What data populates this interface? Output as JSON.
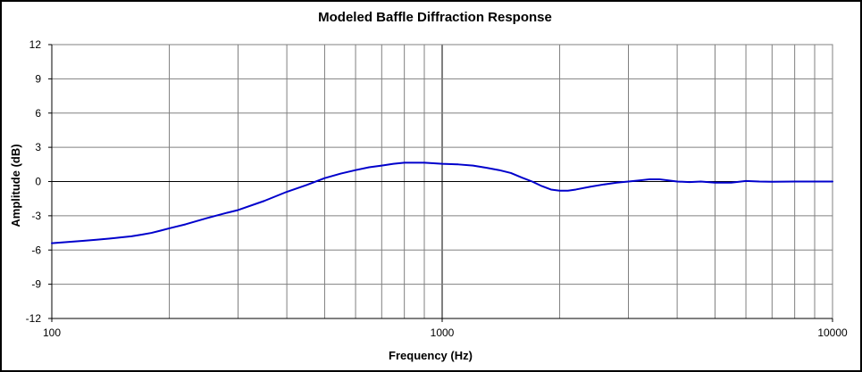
{
  "chart_data": {
    "type": "line",
    "title": "Modeled Baffle Diffraction Response",
    "xlabel": "Frequency (Hz)",
    "ylabel": "Amplitude (dB)",
    "x_scale": "log",
    "xlim": [
      100,
      10000
    ],
    "ylim": [
      -12,
      12
    ],
    "x_ticks": [
      100,
      1000,
      10000
    ],
    "x_tick_labels": [
      "100",
      "1000",
      "10000"
    ],
    "y_ticks": [
      12,
      9,
      6,
      3,
      0,
      -3,
      -6,
      -9,
      -12
    ],
    "y_tick_labels": [
      "12",
      "9",
      "6",
      "3",
      "0",
      "-3",
      "-6",
      "-9",
      "-12"
    ],
    "grid": true,
    "legend": "none",
    "series": [
      {
        "color": "#0000cc",
        "points": [
          [
            100,
            -5.4
          ],
          [
            110,
            -5.3
          ],
          [
            120,
            -5.2
          ],
          [
            130,
            -5.1
          ],
          [
            140,
            -5.0
          ],
          [
            150,
            -4.9
          ],
          [
            160,
            -4.8
          ],
          [
            170,
            -4.65
          ],
          [
            180,
            -4.5
          ],
          [
            190,
            -4.3
          ],
          [
            200,
            -4.1
          ],
          [
            220,
            -3.75
          ],
          [
            250,
            -3.2
          ],
          [
            280,
            -2.75
          ],
          [
            300,
            -2.5
          ],
          [
            350,
            -1.7
          ],
          [
            400,
            -0.9
          ],
          [
            450,
            -0.3
          ],
          [
            500,
            0.3
          ],
          [
            550,
            0.7
          ],
          [
            600,
            1.0
          ],
          [
            650,
            1.25
          ],
          [
            700,
            1.4
          ],
          [
            750,
            1.55
          ],
          [
            800,
            1.65
          ],
          [
            850,
            1.65
          ],
          [
            900,
            1.65
          ],
          [
            950,
            1.6
          ],
          [
            1000,
            1.55
          ],
          [
            1100,
            1.5
          ],
          [
            1200,
            1.4
          ],
          [
            1300,
            1.2
          ],
          [
            1400,
            1.0
          ],
          [
            1500,
            0.75
          ],
          [
            1600,
            0.35
          ],
          [
            1700,
            0.0
          ],
          [
            1800,
            -0.4
          ],
          [
            1900,
            -0.7
          ],
          [
            2000,
            -0.8
          ],
          [
            2100,
            -0.8
          ],
          [
            2200,
            -0.7
          ],
          [
            2400,
            -0.45
          ],
          [
            2600,
            -0.25
          ],
          [
            2800,
            -0.1
          ],
          [
            3000,
            0.0
          ],
          [
            3200,
            0.1
          ],
          [
            3400,
            0.2
          ],
          [
            3600,
            0.2
          ],
          [
            3800,
            0.1
          ],
          [
            4000,
            0.0
          ],
          [
            4300,
            -0.05
          ],
          [
            4600,
            0.0
          ],
          [
            5000,
            -0.1
          ],
          [
            5500,
            -0.1
          ],
          [
            6000,
            0.05
          ],
          [
            6500,
            0.0
          ],
          [
            7000,
            -0.02
          ],
          [
            8000,
            0.0
          ],
          [
            9000,
            0.0
          ],
          [
            10000,
            0.0
          ]
        ]
      }
    ]
  }
}
